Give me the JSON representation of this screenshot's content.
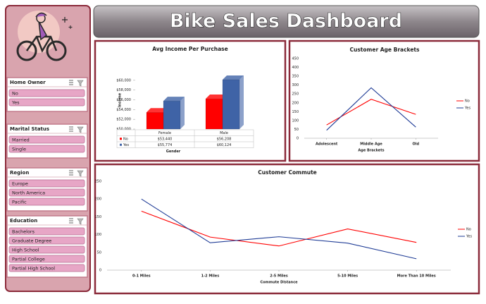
{
  "header": {
    "title": "Bike Sales Dashboard"
  },
  "slicers": [
    {
      "title": "Home Owner",
      "items": [
        "No",
        "Yes"
      ]
    },
    {
      "title": "Marital Status",
      "items": [
        "Married",
        "Single"
      ]
    },
    {
      "title": "Region",
      "items": [
        "Europe",
        "North America",
        "Pacific"
      ]
    },
    {
      "title": "Education",
      "items": [
        "Bachelors",
        "Graduate Degree",
        "High School",
        "Partial College",
        "Partial High School"
      ]
    }
  ],
  "chart_data": [
    {
      "type": "bar3d",
      "title": "Avg Income Per Purchase",
      "x_label": "Gender",
      "y_label": "Income",
      "categories": [
        "Female",
        "Male"
      ],
      "series": [
        {
          "name": "No",
          "color": "#ff0000",
          "values": [
            53440,
            56208
          ],
          "value_labels": [
            "$53,440",
            "$56,208"
          ]
        },
        {
          "name": "Yes",
          "color": "#3f63a6",
          "values": [
            55774,
            60124
          ],
          "value_labels": [
            "$55,774",
            "$60,124"
          ]
        }
      ],
      "ylim": [
        50000,
        62000
      ],
      "yticks": [
        {
          "value": 50000,
          "label": "$50,000"
        },
        {
          "value": 52000,
          "label": "$52,000"
        },
        {
          "value": 54000,
          "label": "$54,000"
        },
        {
          "value": 56000,
          "label": "$56,000"
        },
        {
          "value": 58000,
          "label": "$58,000"
        },
        {
          "value": 60000,
          "label": "$60,000"
        }
      ],
      "grid": false,
      "data_table": true
    },
    {
      "type": "line",
      "title": "Customer Age Brackets",
      "x_label": "Age Brackets",
      "categories": [
        "Adolescent",
        "Middle Age",
        "Old"
      ],
      "series": [
        {
          "name": "No",
          "color": "#ff0000",
          "values": [
            75,
            220,
            135
          ]
        },
        {
          "name": "Yes",
          "color": "#1f3c96",
          "values": [
            45,
            285,
            63
          ]
        }
      ],
      "ylim": [
        0,
        450
      ],
      "yticks": [
        0,
        50,
        100,
        150,
        200,
        250,
        300,
        350,
        400,
        450
      ],
      "grid": false,
      "legend": "right"
    },
    {
      "type": "line",
      "title": "Customer Commute",
      "x_label": "Commute Distance",
      "categories": [
        "0-1 Miles",
        "1-2 Miles",
        "2-5 Miles",
        "5-10 Miles",
        "More Than 10 Miles"
      ],
      "series": [
        {
          "name": "No",
          "color": "#ff0000",
          "values": [
            166,
            93,
            68,
            116,
            78
          ]
        },
        {
          "name": "Yes",
          "color": "#1f3c96",
          "values": [
            200,
            77,
            94,
            76,
            32
          ]
        }
      ],
      "ylim": [
        0,
        250
      ],
      "yticks": [
        0,
        50,
        100,
        150,
        200,
        250
      ],
      "grid": false,
      "legend": "right"
    }
  ]
}
